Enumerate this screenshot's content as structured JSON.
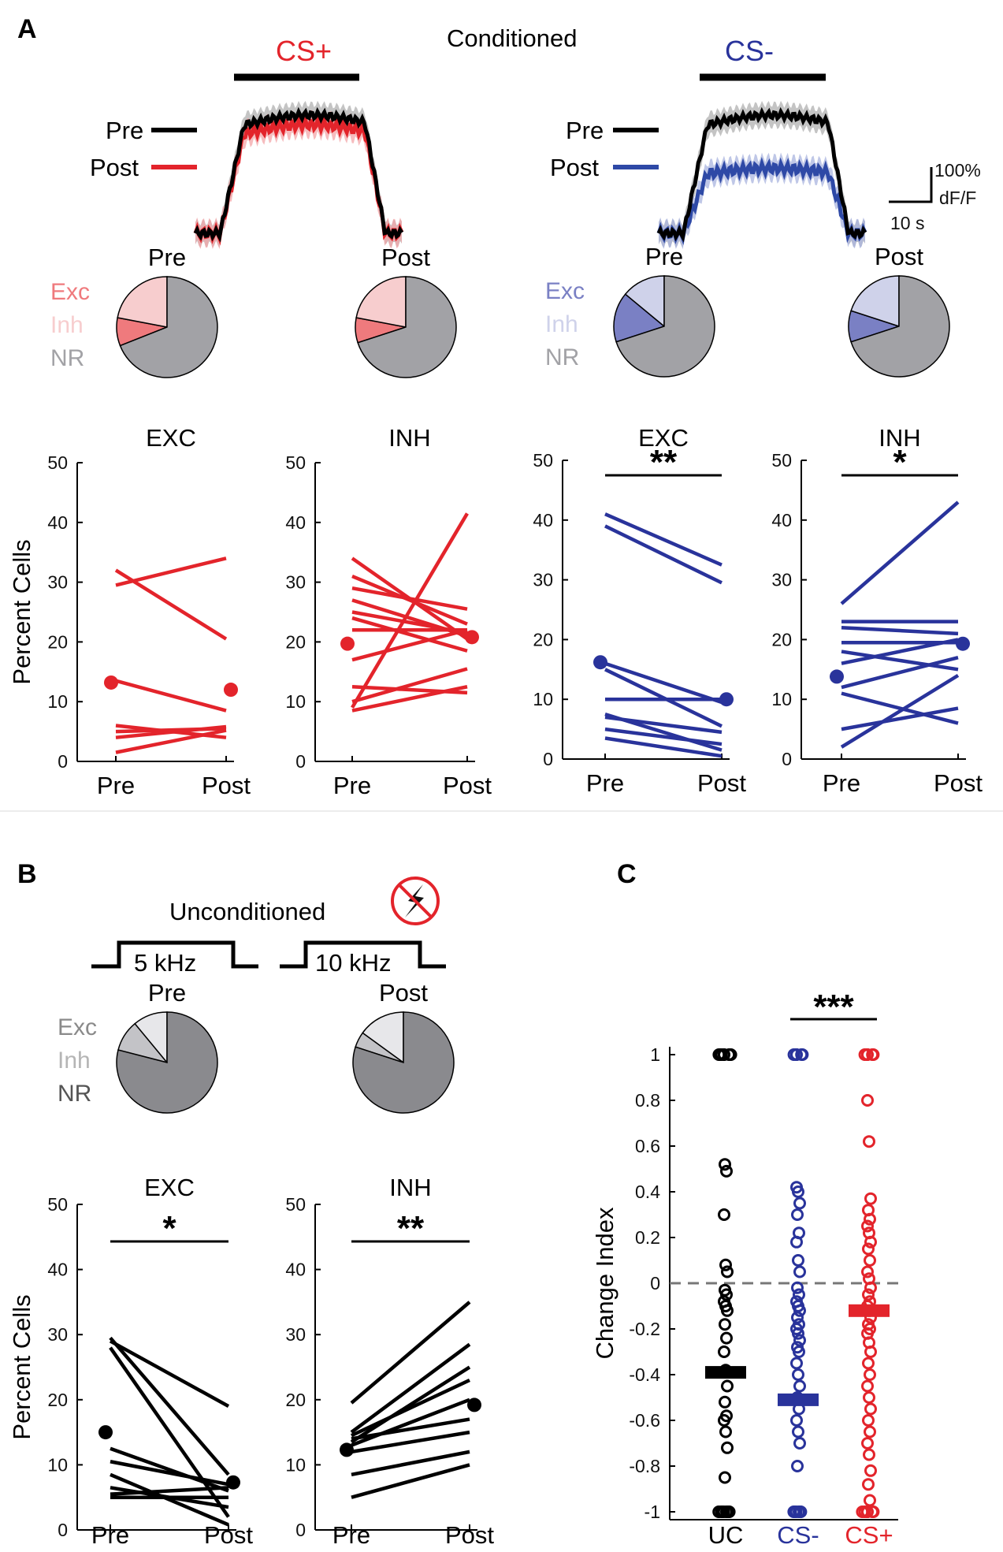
{
  "panels": {
    "a": "A",
    "b": "B",
    "c": "C"
  },
  "colors": {
    "cs_plus": "#e3242b",
    "cs_minus": "#29339b",
    "black": "#000000",
    "cs_plus_exc": "#ef7a7d",
    "cs_plus_inh": "#f7cdce",
    "cs_minus_exc": "#7a80c4",
    "cs_minus_inh": "#cfd2ea",
    "nr_gray": "#a2a2a6",
    "uc_exc": "#c3c3c7",
    "uc_inh": "#e7e7ea",
    "uc_nr": "#8a8a8e"
  },
  "panel_a": {
    "title": "Conditioned",
    "traces": [
      {
        "stim_label": "CS+",
        "stim_color": "#e3242b",
        "legend_pre": "Pre",
        "legend_post": "Post",
        "pre_color": "#000000",
        "post_color": "#e3242b",
        "pre_band": "#b0b0b0",
        "post_band": "#f3a5a8",
        "pre_plateau": 1.0,
        "post_plateau": 0.92
      },
      {
        "stim_label": "CS-",
        "stim_color": "#29339b",
        "legend_pre": "Pre",
        "legend_post": "Post",
        "pre_color": "#000000",
        "post_color": "#2e49a6",
        "pre_band": "#b0b0b0",
        "post_band": "#a9b4df",
        "pre_plateau": 1.0,
        "post_plateau": 0.55
      }
    ],
    "scalebar": {
      "y_label_1": "100%",
      "y_label_2": "dF/F",
      "x_label": "10 s"
    },
    "pies": [
      {
        "title": "Pre",
        "exc": 9,
        "inh": 22,
        "legend": [
          {
            "label": "Exc",
            "color": "#ef7a7d"
          },
          {
            "label": "Inh",
            "color": "#f7cdce"
          },
          {
            "label": "NR",
            "color": "#a2a2a6"
          }
        ],
        "colors": [
          "#ef7a7d",
          "#f7cdce",
          "#a2a2a6"
        ]
      },
      {
        "title": "Post",
        "exc": 8,
        "inh": 22,
        "legend": [],
        "colors": [
          "#ef7a7d",
          "#f7cdce",
          "#a2a2a6"
        ]
      },
      {
        "title": "Pre",
        "exc": 16,
        "inh": 14,
        "legend": [
          {
            "label": "Exc",
            "color": "#7a80c4"
          },
          {
            "label": "Inh",
            "color": "#cfd2ea"
          },
          {
            "label": "NR",
            "color": "#a2a2a6"
          }
        ],
        "colors": [
          "#7a80c4",
          "#cfd2ea",
          "#a2a2a6"
        ]
      },
      {
        "title": "Post",
        "exc": 10,
        "inh": 20,
        "legend": [],
        "colors": [
          "#7a80c4",
          "#cfd2ea",
          "#a2a2a6"
        ]
      }
    ]
  },
  "panel_b": {
    "title": "Unconditioned",
    "stim_1": "5 kHz",
    "stim_2": "10 kHz",
    "pies": [
      {
        "title": "Pre",
        "exc": 10,
        "inh": 11,
        "legend": [
          {
            "label": "Exc",
            "color": "#8a8a8a"
          },
          {
            "label": "Inh",
            "color": "#b5b5b5"
          },
          {
            "label": "NR",
            "color": "#555555"
          }
        ],
        "colors": [
          "#c3c3c7",
          "#e7e7ea",
          "#8a8a8e"
        ]
      },
      {
        "title": "Post",
        "exc": 5,
        "inh": 15,
        "legend": [],
        "colors": [
          "#c3c3c7",
          "#e7e7ea",
          "#8a8a8e"
        ]
      }
    ]
  },
  "chart_data": [
    {
      "type": "line",
      "id": "a_csplus_exc",
      "title": "EXC",
      "ylabel": "Percent Cells",
      "categories": [
        "Pre",
        "Post"
      ],
      "ylim": [
        0,
        50
      ],
      "yticks": [
        0,
        10,
        20,
        30,
        40,
        50
      ],
      "color": "#e3242b",
      "series": [
        [
          32,
          20.5
        ],
        [
          29.5,
          34
        ],
        [
          13.5,
          8.5
        ],
        [
          6,
          4
        ],
        [
          5,
          5.5
        ],
        [
          4,
          5.8
        ],
        [
          1.5,
          5.2
        ]
      ],
      "mean": [
        13.2,
        12
      ],
      "significance": ""
    },
    {
      "type": "line",
      "id": "a_csplus_inh",
      "title": "INH",
      "ylabel": "",
      "categories": [
        "Pre",
        "Post"
      ],
      "ylim": [
        0,
        50
      ],
      "yticks": [
        0,
        10,
        20,
        30,
        40,
        50
      ],
      "color": "#e3242b",
      "series": [
        [
          34,
          20.5
        ],
        [
          31,
          23
        ],
        [
          29,
          25.5
        ],
        [
          27,
          21
        ],
        [
          25,
          21.5
        ],
        [
          24,
          18.5
        ],
        [
          22,
          22
        ],
        [
          17,
          22
        ],
        [
          12.5,
          11.5
        ],
        [
          10,
          15.5
        ],
        [
          9,
          41.5
        ],
        [
          8.5,
          12.5
        ]
      ],
      "mean": [
        19.7,
        20.8
      ],
      "significance": ""
    },
    {
      "type": "line",
      "id": "a_csminus_exc",
      "title": "EXC",
      "ylabel": "",
      "categories": [
        "Pre",
        "Post"
      ],
      "ylim": [
        0,
        50
      ],
      "yticks": [
        0,
        10,
        20,
        30,
        40,
        50
      ],
      "color": "#29339b",
      "series": [
        [
          41,
          32.5
        ],
        [
          39,
          29.5
        ],
        [
          16,
          9.5
        ],
        [
          15,
          5.5
        ],
        [
          10,
          10
        ],
        [
          7.5,
          1.5
        ],
        [
          7,
          4.5
        ],
        [
          5,
          2.5
        ],
        [
          3.5,
          0.5
        ]
      ],
      "mean": [
        16.2,
        10
      ],
      "significance": "**"
    },
    {
      "type": "line",
      "id": "a_csminus_inh",
      "title": "INH",
      "ylabel": "",
      "categories": [
        "Pre",
        "Post"
      ],
      "ylim": [
        0,
        50
      ],
      "yticks": [
        0,
        10,
        20,
        30,
        40,
        50
      ],
      "color": "#29339b",
      "series": [
        [
          26,
          43
        ],
        [
          23,
          23
        ],
        [
          22,
          21
        ],
        [
          19.5,
          19.5
        ],
        [
          18,
          15
        ],
        [
          16,
          20
        ],
        [
          12,
          17
        ],
        [
          11,
          6
        ],
        [
          5,
          8.5
        ],
        [
          2,
          14
        ]
      ],
      "mean": [
        13.8,
        19.3
      ],
      "significance": "*"
    },
    {
      "type": "line",
      "id": "b_exc",
      "title": "EXC",
      "ylabel": "Percent Cells",
      "categories": [
        "Pre",
        "Post"
      ],
      "ylim": [
        0,
        50
      ],
      "yticks": [
        0,
        10,
        20,
        30,
        40,
        50
      ],
      "color": "#000000",
      "series": [
        [
          29.5,
          8.5
        ],
        [
          29,
          19
        ],
        [
          28,
          2
        ],
        [
          12.5,
          6
        ],
        [
          10.5,
          7
        ],
        [
          8.5,
          0.8
        ],
        [
          6.5,
          3.5
        ],
        [
          5.5,
          6.5
        ],
        [
          5,
          5
        ]
      ],
      "mean": [
        15,
        7.3
      ],
      "significance": "*"
    },
    {
      "type": "line",
      "id": "b_inh",
      "title": "INH",
      "ylabel": "",
      "categories": [
        "Pre",
        "Post"
      ],
      "ylim": [
        0,
        50
      ],
      "yticks": [
        0,
        10,
        20,
        30,
        40,
        50
      ],
      "color": "#000000",
      "series": [
        [
          19.5,
          35
        ],
        [
          15,
          28.5
        ],
        [
          14.5,
          23
        ],
        [
          14,
          17
        ],
        [
          13.5,
          25
        ],
        [
          13,
          20
        ],
        [
          12,
          15
        ],
        [
          8.5,
          12
        ],
        [
          5,
          10
        ]
      ],
      "mean": [
        12.3,
        19.2
      ],
      "significance": "**"
    },
    {
      "type": "scatter",
      "id": "c_change_index",
      "title": "",
      "ylabel": "Change Index",
      "categories": [
        "UC",
        "CS-",
        "CS+"
      ],
      "category_colors": [
        "#000000",
        "#29339b",
        "#e3242b"
      ],
      "ylim": [
        -1,
        1
      ],
      "yticks": [
        1,
        0.8,
        0.6,
        0.4,
        0.2,
        0,
        -0.2,
        -0.4,
        -0.6,
        -0.8,
        -1
      ],
      "ytick_labels": [
        "1",
        "0.8",
        "0.6",
        "0.4",
        "0.2",
        "0",
        "-0.2",
        "-0.4",
        "-0.6",
        "-0.8",
        "-1"
      ],
      "medians": [
        -0.39,
        -0.51,
        -0.12
      ],
      "points": [
        [
          1,
          1,
          1,
          1,
          1,
          1,
          1,
          1,
          0.52,
          0.49,
          0.3,
          0.08,
          0.05,
          -0.03,
          -0.05,
          -0.08,
          -0.1,
          -0.12,
          -0.18,
          -0.24,
          -0.3,
          -0.38,
          -0.45,
          -0.52,
          -0.58,
          -0.6,
          -0.65,
          -0.72,
          -0.85,
          -1,
          -1,
          -1,
          -1,
          -1,
          -1,
          -1,
          -1
        ],
        [
          1,
          1,
          1,
          1,
          1,
          0.42,
          0.4,
          0.35,
          0.3,
          0.22,
          0.18,
          0.1,
          0.05,
          -0.02,
          -0.05,
          -0.08,
          -0.1,
          -0.12,
          -0.15,
          -0.18,
          -0.2,
          -0.22,
          -0.25,
          -0.28,
          -0.3,
          -0.35,
          -0.4,
          -0.45,
          -0.5,
          -0.55,
          -0.6,
          -0.65,
          -0.7,
          -0.8,
          -1,
          -1,
          -1,
          -1,
          -1,
          -1
        ],
        [
          1,
          1,
          1,
          1,
          1,
          0.8,
          0.62,
          0.37,
          0.32,
          0.28,
          0.25,
          0.22,
          0.18,
          0.15,
          0.1,
          0.05,
          0.02,
          -0.02,
          -0.05,
          -0.08,
          -0.1,
          -0.12,
          -0.15,
          -0.18,
          -0.2,
          -0.22,
          -0.26,
          -0.3,
          -0.35,
          -0.4,
          -0.45,
          -0.5,
          -0.55,
          -0.6,
          -0.65,
          -0.7,
          -0.75,
          -0.82,
          -0.88,
          -0.95,
          -1,
          -1,
          -1,
          -1,
          -1,
          -1
        ]
      ],
      "comparison": {
        "label": "***",
        "between": [
          "CS-",
          "CS+"
        ]
      }
    }
  ]
}
